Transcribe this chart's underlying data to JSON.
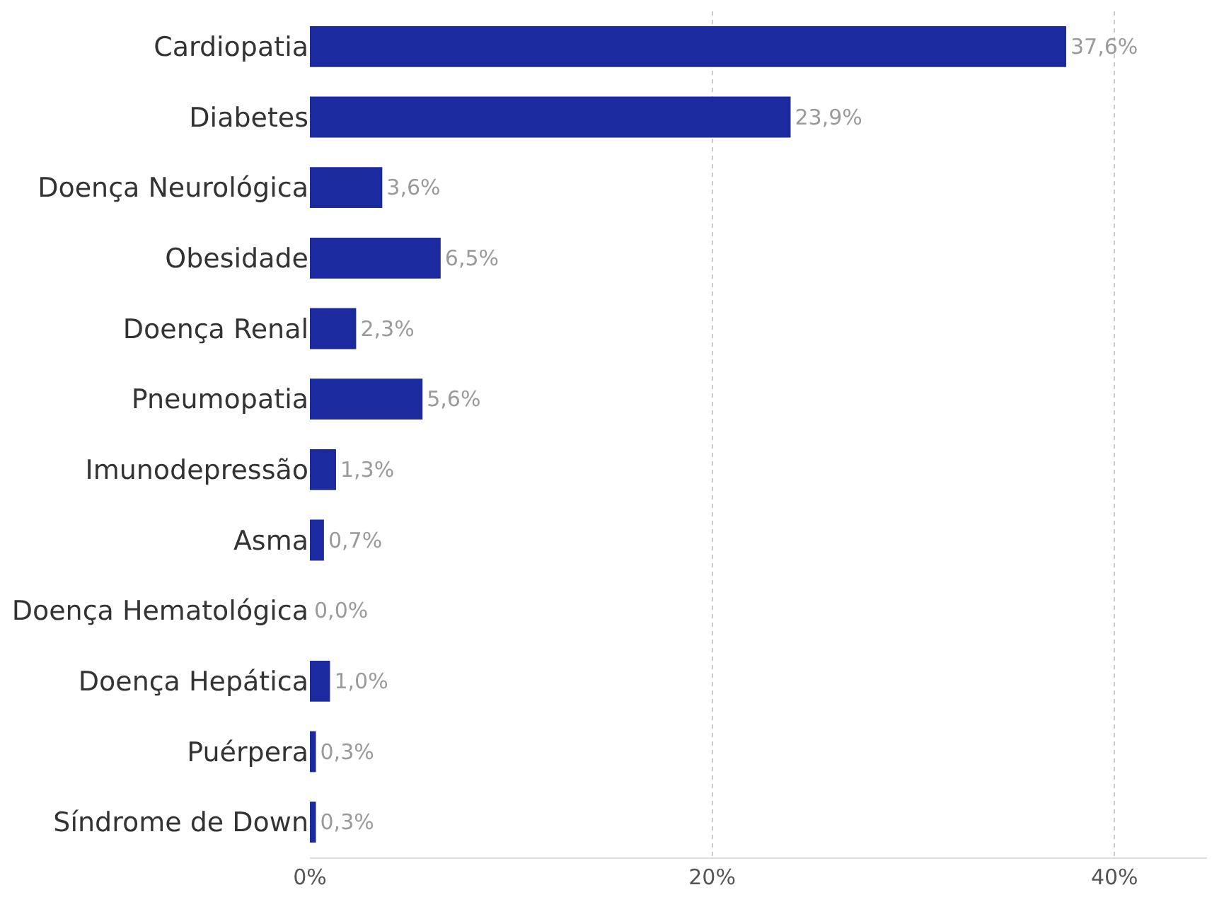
{
  "chart_data": {
    "type": "bar",
    "orientation": "horizontal",
    "categories": [
      "Cardiopatia",
      "Diabetes",
      "Doença Neurológica",
      "Obesidade",
      "Doença Renal",
      "Pneumopatia",
      "Imunodepressão",
      "Asma",
      "Doença Hematológica",
      "Doença Hepática",
      "Puérpera",
      "Síndrome de Down"
    ],
    "values": [
      37.6,
      23.9,
      3.6,
      6.5,
      2.3,
      5.6,
      1.3,
      0.7,
      0.0,
      1.0,
      0.3,
      0.3
    ],
    "value_labels": [
      "37,6%",
      "23,9%",
      "3,6%",
      "6,5%",
      "2,3%",
      "5,6%",
      "1,3%",
      "0,7%",
      "0,0%",
      "1,0%",
      "0,3%",
      "0,3%"
    ],
    "color": "#1c2aa0",
    "xlim": [
      0,
      44.6
    ],
    "xticks": [
      {
        "value": 0,
        "label": "0%"
      },
      {
        "value": 20,
        "label": "20%"
      },
      {
        "value": 40,
        "label": "40%"
      }
    ],
    "grid": "x",
    "legend": false
  }
}
